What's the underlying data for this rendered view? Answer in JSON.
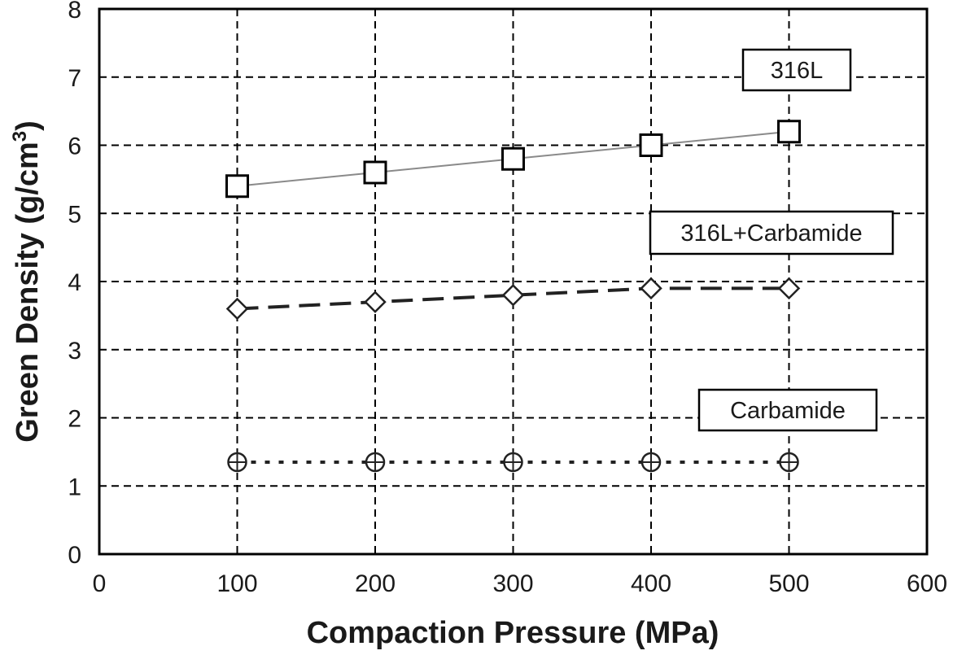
{
  "chart_data": {
    "type": "line",
    "xlabel": "Compaction Pressure (MPa)",
    "ylabel_main": "Green Density (g/cm",
    "ylabel_sup": "3",
    "ylabel_end": ")",
    "xlim": [
      0,
      600
    ],
    "ylim": [
      0,
      8
    ],
    "xticks": [
      "0",
      "100",
      "200",
      "300",
      "400",
      "500",
      "600"
    ],
    "yticks": [
      "0",
      "1",
      "2",
      "3",
      "4",
      "5",
      "6",
      "7",
      "8"
    ],
    "grid": true,
    "x": [
      100,
      200,
      300,
      400,
      500
    ],
    "series": [
      {
        "name": "316L",
        "values": [
          5.4,
          5.6,
          5.8,
          6.0,
          6.2
        ],
        "marker": "square",
        "line": "solid",
        "color": "#000000"
      },
      {
        "name": "316L+Carbamide",
        "values": [
          3.6,
          3.7,
          3.8,
          3.9,
          3.9
        ],
        "marker": "diamond",
        "line": "dashed",
        "color": "#000000"
      },
      {
        "name": "Carbamide",
        "values": [
          1.35,
          1.35,
          1.35,
          1.35,
          1.35
        ],
        "marker": "circle-plus",
        "line": "dotted",
        "color": "#000000"
      }
    ]
  }
}
